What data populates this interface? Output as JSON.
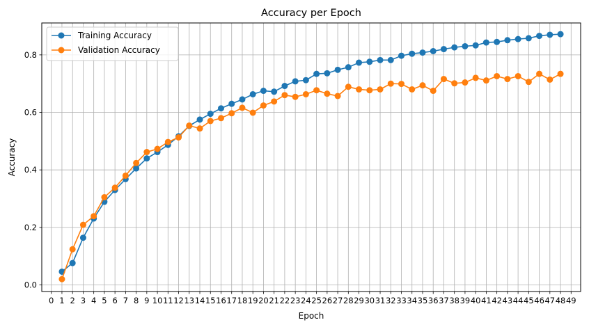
{
  "chart_data": {
    "type": "line",
    "title": "Accuracy per Epoch",
    "xlabel": "Epoch",
    "ylabel": "Accuracy",
    "x_ticks": [
      0,
      1,
      2,
      3,
      4,
      5,
      6,
      7,
      8,
      9,
      10,
      11,
      12,
      13,
      14,
      15,
      16,
      17,
      18,
      19,
      20,
      21,
      22,
      23,
      24,
      25,
      26,
      27,
      28,
      29,
      30,
      31,
      32,
      33,
      34,
      35,
      36,
      37,
      38,
      39,
      40,
      41,
      42,
      43,
      44,
      45,
      46,
      47,
      48,
      49
    ],
    "y_ticks": [
      0.0,
      0.2,
      0.4,
      0.6,
      0.8
    ],
    "y_tick_labels": [
      "0.0",
      "0.2",
      "0.4",
      "0.6",
      "0.8"
    ],
    "xlim": [
      -0.9,
      49.9
    ],
    "ylim": [
      -0.023,
      0.911
    ],
    "grid": true,
    "legend_position": "upper-left",
    "x": [
      1,
      2,
      3,
      4,
      5,
      6,
      7,
      8,
      9,
      10,
      11,
      12,
      13,
      14,
      15,
      16,
      17,
      18,
      19,
      20,
      21,
      22,
      23,
      24,
      25,
      26,
      27,
      28,
      29,
      30,
      31,
      32,
      33,
      34,
      35,
      36,
      37,
      38,
      39,
      40,
      41,
      42,
      43,
      44,
      45,
      46,
      47,
      48
    ],
    "series": [
      {
        "name": "Training Accuracy",
        "color": "#1f77b4",
        "values": [
          0.046,
          0.076,
          0.164,
          0.231,
          0.289,
          0.33,
          0.368,
          0.405,
          0.44,
          0.462,
          0.487,
          0.517,
          0.553,
          0.575,
          0.595,
          0.614,
          0.63,
          0.645,
          0.663,
          0.675,
          0.672,
          0.692,
          0.708,
          0.712,
          0.734,
          0.736,
          0.748,
          0.757,
          0.773,
          0.776,
          0.782,
          0.782,
          0.797,
          0.804,
          0.808,
          0.813,
          0.82,
          0.826,
          0.83,
          0.833,
          0.843,
          0.845,
          0.851,
          0.855,
          0.858,
          0.866,
          0.87,
          0.872
        ]
      },
      {
        "name": "Validation Accuracy",
        "color": "#ff7f0e",
        "values": [
          0.02,
          0.124,
          0.209,
          0.239,
          0.305,
          0.338,
          0.38,
          0.424,
          0.462,
          0.473,
          0.497,
          0.513,
          0.554,
          0.544,
          0.57,
          0.58,
          0.597,
          0.616,
          0.599,
          0.624,
          0.638,
          0.66,
          0.654,
          0.663,
          0.677,
          0.665,
          0.657,
          0.689,
          0.68,
          0.677,
          0.68,
          0.7,
          0.699,
          0.68,
          0.694,
          0.675,
          0.716,
          0.701,
          0.704,
          0.72,
          0.711,
          0.726,
          0.716,
          0.726,
          0.706,
          0.734,
          0.714,
          0.734
        ]
      }
    ]
  }
}
